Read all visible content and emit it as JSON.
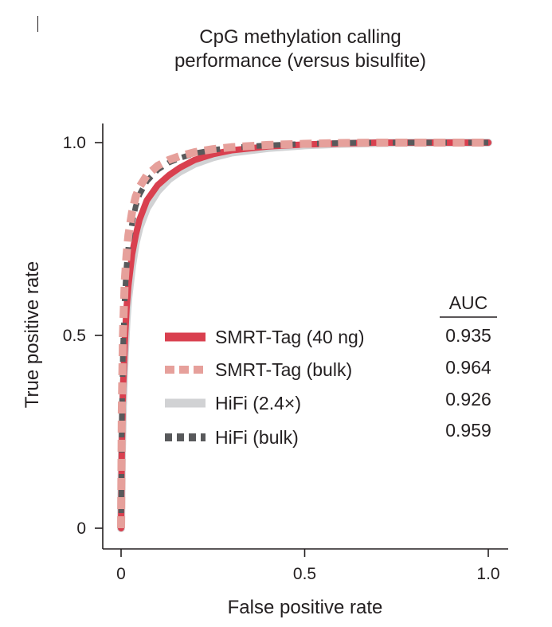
{
  "chart_data": {
    "type": "line",
    "title_lines": [
      "CpG methylation calling",
      "performance (versus bisulfite)"
    ],
    "xlabel": "False positive rate",
    "ylabel": "True positive rate",
    "xlim": [
      0,
      1
    ],
    "ylim": [
      0,
      1
    ],
    "xticks": [
      0,
      0.5,
      1
    ],
    "xtick_labels": [
      "0",
      "0.5",
      "1.0"
    ],
    "yticks": [
      0,
      0.5,
      1
    ],
    "ytick_labels": [
      "0",
      "0.5",
      "1.0"
    ],
    "grid": false,
    "legend_position": "center-right",
    "auc_header": "AUC",
    "series": [
      {
        "name": "SMRT-Tag (40 ng)",
        "auc": "0.935",
        "color": "#d9404f",
        "style": "solid",
        "x": [
          0,
          0.002,
          0.005,
          0.01,
          0.015,
          0.02,
          0.03,
          0.04,
          0.05,
          0.07,
          0.1,
          0.13,
          0.16,
          0.2,
          0.25,
          0.3,
          0.4,
          0.5,
          0.6,
          0.7,
          0.8,
          0.9,
          1.0
        ],
        "y": [
          0,
          0.2,
          0.35,
          0.48,
          0.57,
          0.63,
          0.71,
          0.76,
          0.8,
          0.85,
          0.89,
          0.915,
          0.935,
          0.955,
          0.97,
          0.98,
          0.99,
          0.995,
          0.998,
          1.0,
          1.0,
          1.0,
          1.0
        ]
      },
      {
        "name": "SMRT-Tag (bulk)",
        "auc": "0.964",
        "color": "#e6a09b",
        "style": "dashed",
        "x": [
          0,
          0.002,
          0.005,
          0.01,
          0.015,
          0.02,
          0.03,
          0.04,
          0.05,
          0.07,
          0.1,
          0.13,
          0.16,
          0.2,
          0.25,
          0.3,
          0.4,
          0.5,
          0.6,
          0.7,
          0.8,
          0.9,
          1.0
        ],
        "y": [
          0,
          0.3,
          0.5,
          0.64,
          0.71,
          0.76,
          0.82,
          0.86,
          0.885,
          0.915,
          0.94,
          0.955,
          0.965,
          0.975,
          0.983,
          0.988,
          0.994,
          0.997,
          0.999,
          1.0,
          1.0,
          1.0,
          1.0
        ]
      },
      {
        "name": "HiFi (2.4×)",
        "auc": "0.926",
        "color": "#d1d2d4",
        "style": "solid",
        "x": [
          0,
          0.002,
          0.005,
          0.01,
          0.015,
          0.02,
          0.03,
          0.04,
          0.05,
          0.07,
          0.1,
          0.13,
          0.16,
          0.2,
          0.25,
          0.3,
          0.4,
          0.5,
          0.6,
          0.7,
          0.8,
          0.9,
          1.0
        ],
        "y": [
          0,
          0.18,
          0.32,
          0.45,
          0.54,
          0.6,
          0.68,
          0.74,
          0.78,
          0.83,
          0.875,
          0.905,
          0.925,
          0.945,
          0.962,
          0.974,
          0.986,
          0.993,
          0.997,
          0.999,
          1.0,
          1.0,
          1.0
        ]
      },
      {
        "name": "HiFi (bulk)",
        "auc": "0.959",
        "color": "#58595b",
        "style": "dashed",
        "x": [
          0,
          0.002,
          0.005,
          0.01,
          0.015,
          0.02,
          0.03,
          0.04,
          0.05,
          0.07,
          0.1,
          0.13,
          0.16,
          0.2,
          0.25,
          0.3,
          0.4,
          0.5,
          0.6,
          0.7,
          0.8,
          0.9,
          1.0
        ],
        "y": [
          0,
          0.27,
          0.46,
          0.6,
          0.68,
          0.73,
          0.79,
          0.835,
          0.865,
          0.9,
          0.93,
          0.948,
          0.96,
          0.972,
          0.981,
          0.987,
          0.993,
          0.997,
          0.999,
          1.0,
          1.0,
          1.0,
          1.0
        ]
      }
    ]
  }
}
